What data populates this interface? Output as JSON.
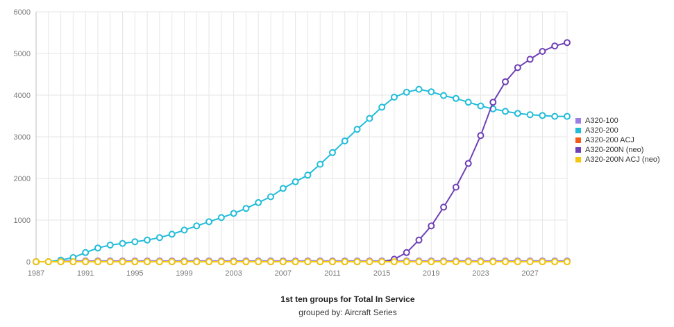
{
  "chart_data": {
    "type": "line",
    "title": "1st ten groups for Total In Service",
    "subtitle": "grouped by: Aircraft Series",
    "xlim": [
      1987,
      2030
    ],
    "ylim": [
      0,
      6000
    ],
    "y_ticks": [
      0,
      1000,
      2000,
      3000,
      4000,
      5000,
      6000
    ],
    "x_ticks": [
      1987,
      1991,
      1995,
      1999,
      2003,
      2007,
      2011,
      2015,
      2019,
      2023,
      2027
    ],
    "grid": true,
    "legend_position": "right",
    "x": [
      1987,
      1988,
      1989,
      1990,
      1991,
      1992,
      1993,
      1994,
      1995,
      1996,
      1997,
      1998,
      1999,
      2000,
      2001,
      2002,
      2003,
      2004,
      2005,
      2006,
      2007,
      2008,
      2009,
      2010,
      2011,
      2012,
      2013,
      2014,
      2015,
      2016,
      2017,
      2018,
      2019,
      2020,
      2021,
      2022,
      2023,
      2024,
      2025,
      2026,
      2027,
      2028,
      2029,
      2030
    ],
    "series": [
      {
        "name": "A320-100",
        "color": "#9b7fe6",
        "values": [
          0,
          0,
          10,
          20,
          20,
          20,
          20,
          20,
          20,
          20,
          20,
          20,
          20,
          20,
          20,
          20,
          20,
          20,
          20,
          20,
          20,
          20,
          20,
          20,
          20,
          20,
          20,
          20,
          20,
          20,
          20,
          20,
          20,
          20,
          20,
          20,
          20,
          20,
          20,
          20,
          20,
          20,
          20,
          20
        ]
      },
      {
        "name": "A320-200",
        "color": "#22bcd9",
        "values": [
          0,
          0,
          40,
          100,
          220,
          330,
          400,
          440,
          480,
          520,
          580,
          660,
          760,
          860,
          960,
          1060,
          1160,
          1280,
          1420,
          1560,
          1760,
          1920,
          2080,
          2340,
          2620,
          2900,
          3180,
          3440,
          3710,
          3950,
          4070,
          4140,
          4080,
          3990,
          3920,
          3830,
          3740,
          3670,
          3610,
          3560,
          3530,
          3510,
          3490,
          3490
        ]
      },
      {
        "name": "A320-200 ACJ",
        "color": "#f45b1b",
        "values": [
          0,
          0,
          0,
          0,
          0,
          0,
          0,
          0,
          0,
          0,
          0,
          0,
          0,
          0,
          0,
          0,
          0,
          0,
          0,
          0,
          0,
          0,
          0,
          0,
          0,
          0,
          0,
          0,
          0,
          0,
          0,
          0,
          0,
          0,
          0,
          0,
          0,
          0,
          0,
          0,
          0,
          0,
          0,
          0
        ]
      },
      {
        "name": "A320-200N (neo)",
        "color": "#6e40b5",
        "values": [
          0,
          0,
          0,
          0,
          0,
          0,
          0,
          0,
          0,
          0,
          0,
          0,
          0,
          0,
          0,
          0,
          0,
          0,
          0,
          0,
          0,
          0,
          0,
          0,
          0,
          0,
          0,
          0,
          0,
          60,
          220,
          520,
          860,
          1310,
          1790,
          2360,
          3030,
          3830,
          4320,
          4660,
          4860,
          5050,
          5180,
          5260
        ]
      },
      {
        "name": "A320-200N ACJ (neo)",
        "color": "#f2c80f",
        "values": [
          0,
          0,
          0,
          0,
          0,
          0,
          0,
          0,
          0,
          0,
          0,
          0,
          0,
          0,
          0,
          0,
          0,
          0,
          0,
          0,
          0,
          0,
          0,
          0,
          0,
          0,
          0,
          0,
          0,
          0,
          0,
          0,
          0,
          0,
          0,
          0,
          0,
          0,
          0,
          0,
          0,
          0,
          0,
          0
        ]
      }
    ]
  }
}
